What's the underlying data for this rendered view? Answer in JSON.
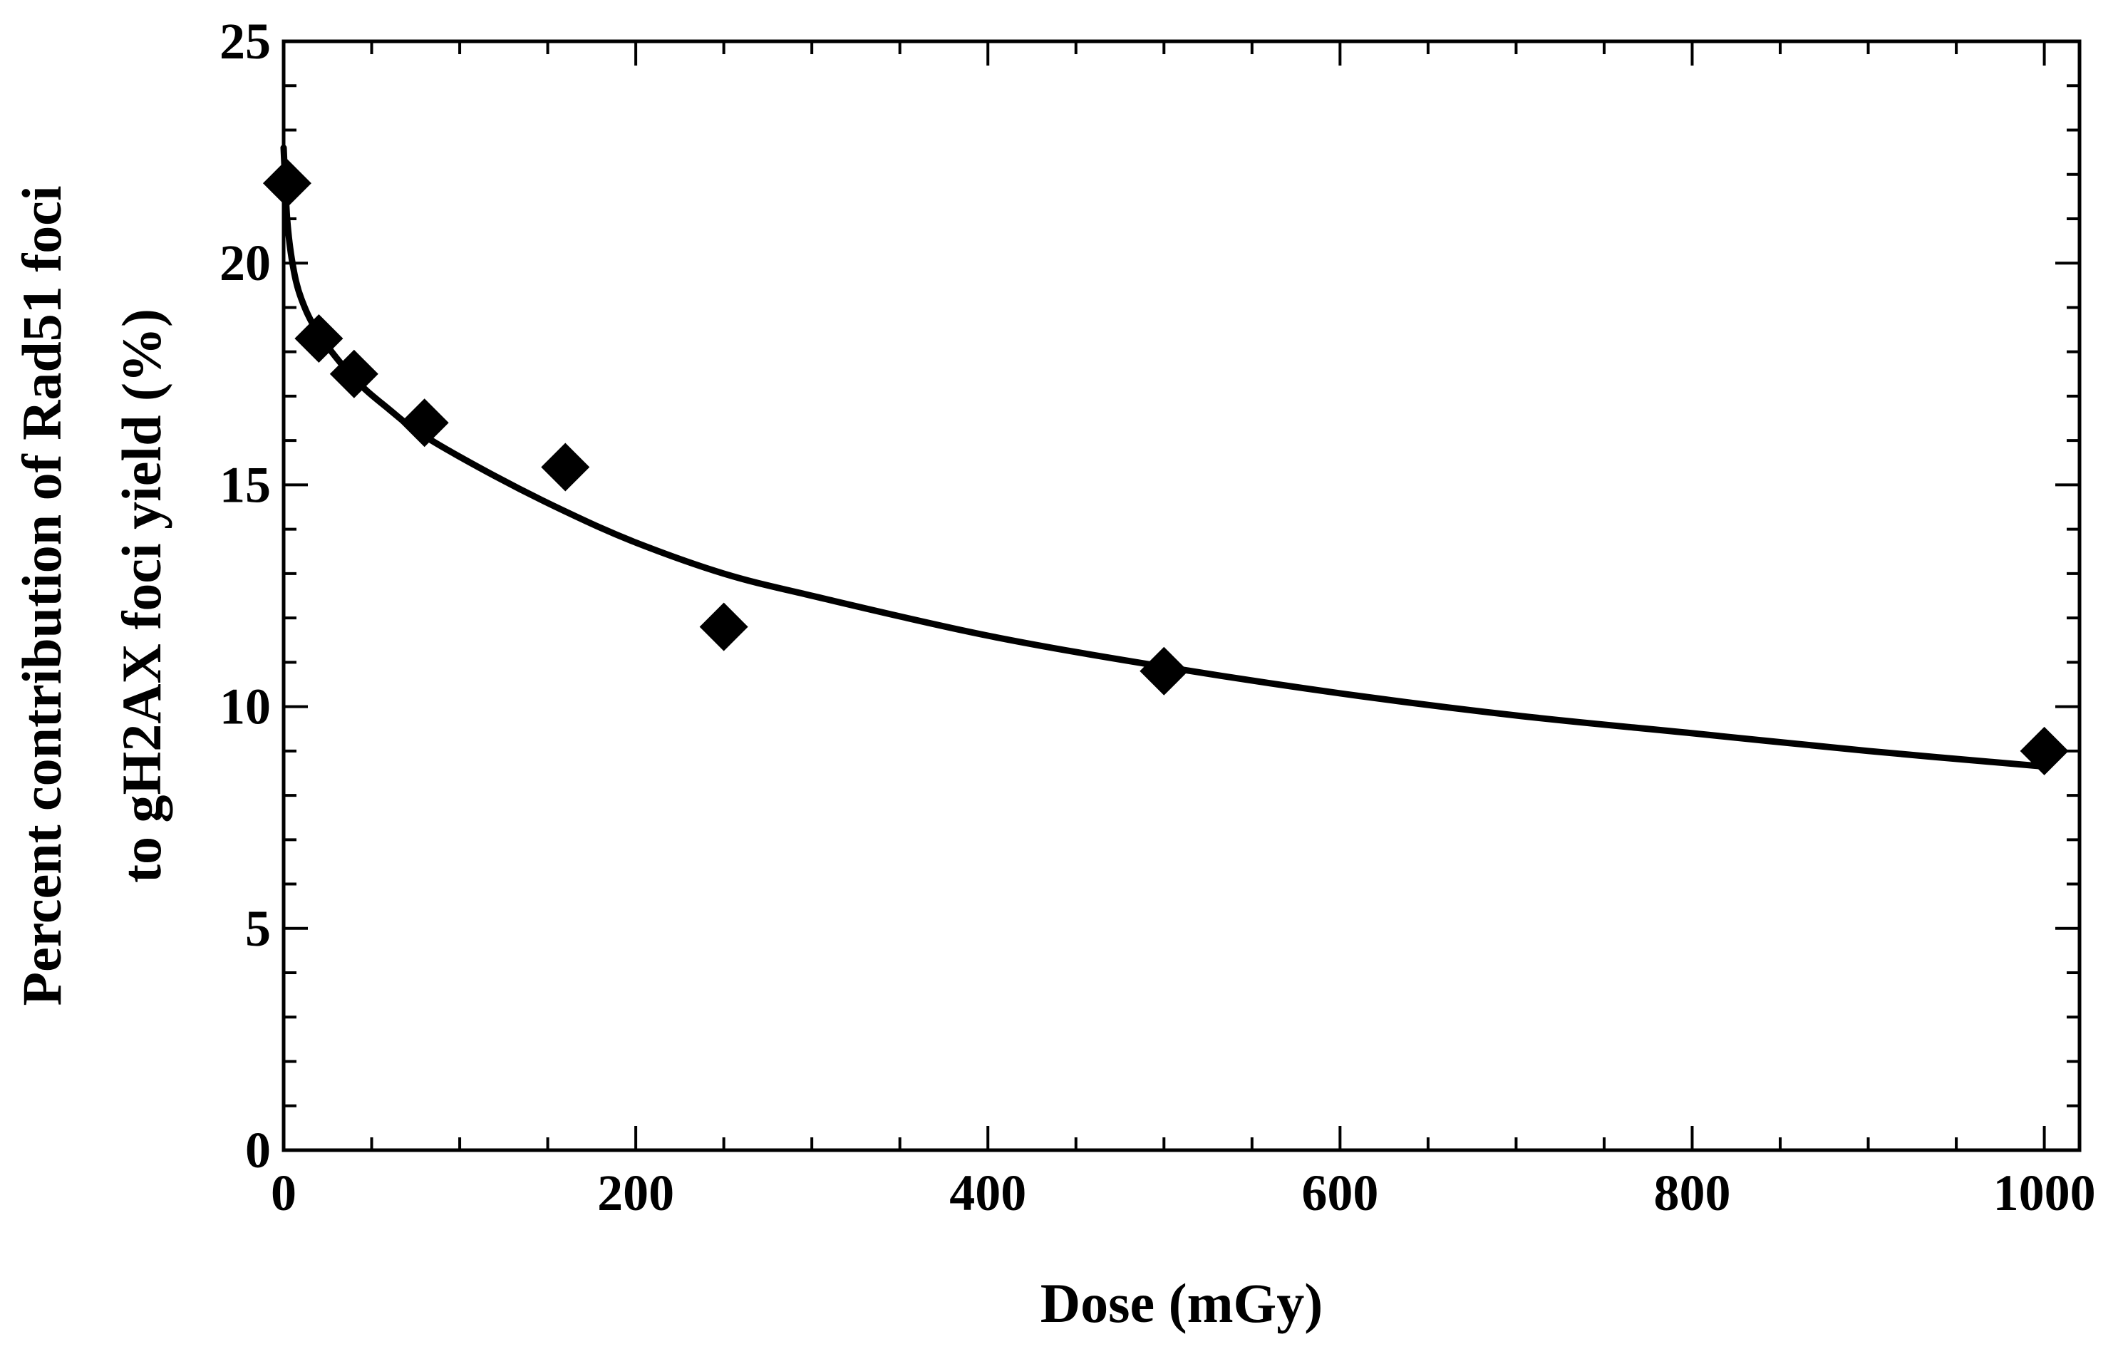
{
  "chart_data": {
    "type": "scatter",
    "xlabel": "Dose (mGy)",
    "ylabel_lines": [
      "Percent contribution of Rad51 foci",
      "to gH2AX foci yield (%)"
    ],
    "xlim": [
      0,
      1020
    ],
    "ylim": [
      0,
      25
    ],
    "x_ticks": [
      0,
      200,
      400,
      600,
      800,
      1000
    ],
    "y_ticks": [
      0,
      5,
      10,
      15,
      20,
      25
    ],
    "grid": false,
    "legend": "none",
    "series": [
      {
        "marker": "diamond",
        "color": "#000000",
        "points": [
          {
            "x": 2,
            "y": 21.8
          },
          {
            "x": 20,
            "y": 18.3
          },
          {
            "x": 40,
            "y": 17.5
          },
          {
            "x": 80,
            "y": 16.4
          },
          {
            "x": 160,
            "y": 15.4
          },
          {
            "x": 250,
            "y": 11.8
          },
          {
            "x": 500,
            "y": 10.8
          },
          {
            "x": 1000,
            "y": 9.0
          }
        ]
      }
    ],
    "fit_curve": {
      "color": "#000000",
      "points": [
        {
          "x": 0,
          "y": 22.6
        },
        {
          "x": 2,
          "y": 21.0
        },
        {
          "x": 5,
          "y": 20.0
        },
        {
          "x": 10,
          "y": 19.2
        },
        {
          "x": 20,
          "y": 18.4
        },
        {
          "x": 40,
          "y": 17.4
        },
        {
          "x": 60,
          "y": 16.7
        },
        {
          "x": 80,
          "y": 16.1
        },
        {
          "x": 120,
          "y": 15.2
        },
        {
          "x": 160,
          "y": 14.4
        },
        {
          "x": 200,
          "y": 13.7
        },
        {
          "x": 250,
          "y": 13.0
        },
        {
          "x": 300,
          "y": 12.5
        },
        {
          "x": 400,
          "y": 11.6
        },
        {
          "x": 500,
          "y": 10.9
        },
        {
          "x": 600,
          "y": 10.3
        },
        {
          "x": 700,
          "y": 9.8
        },
        {
          "x": 800,
          "y": 9.4
        },
        {
          "x": 900,
          "y": 9.0
        },
        {
          "x": 1000,
          "y": 8.65
        }
      ]
    }
  }
}
